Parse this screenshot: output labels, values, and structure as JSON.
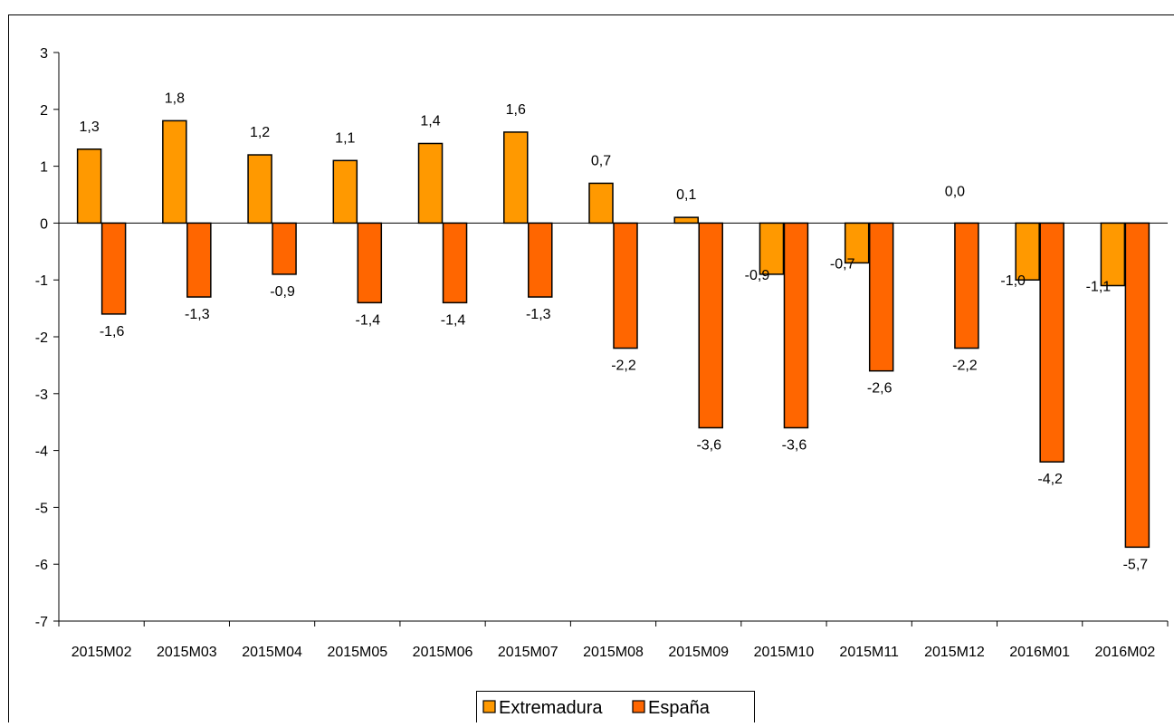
{
  "chart_data": {
    "type": "bar",
    "categories": [
      "2015M02",
      "2015M03",
      "2015M04",
      "2015M05",
      "2015M06",
      "2015M07",
      "2015M08",
      "2015M09",
      "2015M10",
      "2015M11",
      "2015M12",
      "2016M01",
      "2016M02"
    ],
    "series": [
      {
        "name": "Extremadura",
        "color": "#FF9900",
        "values": [
          1.3,
          1.8,
          1.2,
          1.1,
          1.4,
          1.6,
          0.7,
          0.1,
          -0.9,
          -0.7,
          0.0,
          -1.0,
          -1.1
        ],
        "labels": [
          "1,3",
          "1,8",
          "1,2",
          "1,1",
          "1,4",
          "1,6",
          "0,7",
          "0,1",
          "-0,9",
          "-0,7",
          "0,0",
          "-1,0",
          "-1,1"
        ]
      },
      {
        "name": "España",
        "color": "#FF6600",
        "values": [
          -1.6,
          -1.3,
          -0.9,
          -1.4,
          -1.4,
          -1.3,
          -2.2,
          -3.6,
          -3.6,
          -2.6,
          -2.2,
          -4.2,
          -5.7
        ],
        "labels": [
          "-1,6",
          "-1,3",
          "-0,9",
          "-1,4",
          "-1,4",
          "-1,3",
          "-2,2",
          "-3,6",
          "-3,6",
          "-2,6",
          "-2,2",
          "-4,2",
          "-5,7"
        ]
      }
    ],
    "ylim": [
      -7,
      3
    ],
    "yticks": [
      3,
      2,
      1,
      0,
      -1,
      -2,
      -3,
      -4,
      -5,
      -6,
      -7
    ],
    "grid": false,
    "legend_position": "bottom"
  }
}
